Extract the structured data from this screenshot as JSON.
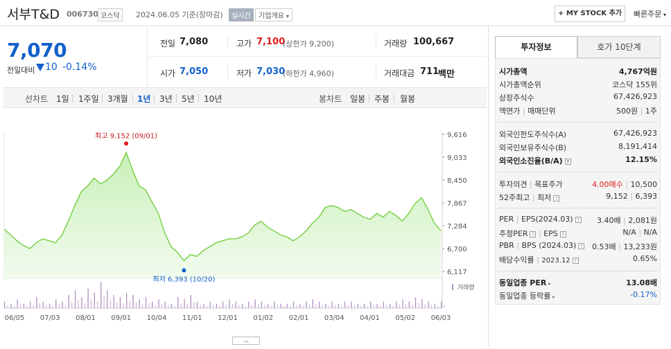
{
  "header": {
    "stock_name": "서부T&D",
    "stock_code": "006730",
    "market": "코스닥",
    "base_date": "2024.06.05 기준(장마감)",
    "realtime_label": "실시간",
    "company_overview_label": "기업개요",
    "mystock_label": "MY STOCK 추가",
    "quick_order_label": "빠른주문"
  },
  "price": {
    "current": "7,070",
    "compare_label": "전일대비",
    "change_amount": "10",
    "change_rate": "-0.14%"
  },
  "summary": {
    "prev_close_label": "전일",
    "prev_close": "7,080",
    "high_label": "고가",
    "high": "7,100",
    "upper_limit": "(상한가 9,200)",
    "volume_label": "거래량",
    "volume": "100,667",
    "open_label": "시가",
    "open": "7,050",
    "low_label": "저가",
    "low": "7,030",
    "lower_limit": "(하한가 4,960)",
    "amount_label": "거래대금",
    "amount": "711",
    "amount_unit": "백만"
  },
  "period_tabs": {
    "line_chart_label": "선차트",
    "line_items": [
      "1일",
      "1주일",
      "3개월",
      "1년",
      "3년",
      "5년",
      "10년"
    ],
    "active": "1년",
    "candle_chart_label": "봉차트",
    "candle_items": [
      "일봉",
      "주봉",
      "월봉"
    ]
  },
  "chart_data": {
    "type": "area",
    "y_ticks": [
      "9,616",
      "9,033",
      "8,450",
      "7,867",
      "7,284",
      "6,700",
      "6,117"
    ],
    "ylim": [
      6117,
      9616
    ],
    "x_ticks": [
      "06/05",
      "07/03",
      "08/01",
      "09/01",
      "10/04",
      "11/01",
      "12/01",
      "01/02",
      "02/01",
      "03/04",
      "04/01",
      "05/02",
      "06/03"
    ],
    "high_annotation": "최고 9,152 (09/01)",
    "low_annotation": "최저 6,393 (10/20)",
    "high_value": 9152,
    "low_value": 6393,
    "values": [
      7200,
      7050,
      6900,
      6780,
      6700,
      6850,
      6950,
      6900,
      6850,
      7050,
      7400,
      7800,
      8150,
      8300,
      8500,
      8350,
      8450,
      8600,
      8800,
      9152,
      8700,
      8300,
      8200,
      7900,
      7600,
      7100,
      6750,
      6600,
      6393,
      6550,
      6500,
      6650,
      6750,
      6850,
      6900,
      6950,
      6950,
      7000,
      7100,
      7300,
      7400,
      7250,
      7150,
      7050,
      7000,
      6900,
      7000,
      7150,
      7350,
      7500,
      7750,
      7800,
      7750,
      7650,
      7700,
      7600,
      7500,
      7450,
      7600,
      7500,
      7650,
      7550,
      7400,
      7600,
      7850,
      8000,
      7700,
      7350,
      7150
    ],
    "volume_label": "거래량",
    "volume": [
      3,
      2,
      4,
      2,
      3,
      5,
      3,
      2,
      4,
      3,
      6,
      8,
      5,
      9,
      7,
      12,
      8,
      6,
      5,
      7,
      6,
      4,
      5,
      3,
      4,
      3,
      2,
      5,
      4,
      6,
      3,
      2,
      3,
      2,
      3,
      4,
      3,
      2,
      3,
      4,
      3,
      2,
      3,
      2,
      2,
      3,
      2,
      3,
      4,
      3,
      2,
      3,
      2,
      3,
      3,
      2,
      2,
      3,
      2,
      3,
      2,
      3,
      4,
      3,
      5,
      4,
      3,
      2,
      3
    ]
  },
  "right_panel": {
    "tab_invest": "투자정보",
    "tab_hoga": "호가 10단계",
    "market_cap_label": "시가총액",
    "market_cap": "4,767억원",
    "market_cap_rank_label": "시가총액순위",
    "market_cap_rank": "코스닥 155위",
    "shares_label": "상장주식수",
    "shares": "67,426,923",
    "par_label": "액면가",
    "trade_unit_label": "매매단위",
    "par": "500원",
    "trade_unit": "1주",
    "foreign_limit_label": "외국인한도주식수(A)",
    "foreign_limit": "67,426,923",
    "foreign_hold_label": "외국인보유주식수(B)",
    "foreign_hold": "8,191,414",
    "foreign_rate_label": "외국인소진율(B/A)",
    "foreign_rate": "12.15%",
    "opinion_label": "투자의견",
    "target_label": "목표주가",
    "opinion": "4.00매수",
    "target": "10,500",
    "week52_label": "52주최고",
    "week52_low_label": "최저",
    "week52_high": "9,152",
    "week52_low": "6,393",
    "per_label": "PER",
    "eps_label": "EPS(2024.03)",
    "per": "3.40배",
    "eps": "2,081원",
    "est_per_label": "추정PER",
    "est_eps_label": "EPS",
    "est_per": "N/A",
    "est_eps": "N/A",
    "pbr_label": "PBR",
    "bps_label": "BPS (2024.03)",
    "pbr": "0.53배",
    "bps": "13,233원",
    "div_label": "배당수익률",
    "div_date": "2023.12",
    "div": "0.65%",
    "industry_per_label": "동일업종 PER",
    "industry_per": "13.08배",
    "industry_rate_label": "동일업종 등락률",
    "industry_rate": "-0.17%"
  }
}
